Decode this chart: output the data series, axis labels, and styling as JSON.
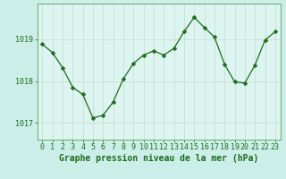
{
  "x": [
    0,
    1,
    2,
    3,
    4,
    5,
    6,
    7,
    8,
    9,
    10,
    11,
    12,
    13,
    14,
    15,
    16,
    17,
    18,
    19,
    20,
    21,
    22,
    23
  ],
  "y": [
    1018.88,
    1018.68,
    1018.32,
    1017.85,
    1017.68,
    1017.12,
    1017.18,
    1017.5,
    1018.05,
    1018.42,
    1018.62,
    1018.72,
    1018.62,
    1018.78,
    1019.18,
    1019.52,
    1019.28,
    1019.05,
    1018.4,
    1017.98,
    1017.95,
    1018.38,
    1018.98,
    1019.18
  ],
  "line_color": "#1e6b1e",
  "marker": "D",
  "marker_size": 2.5,
  "bg_color": "#cceee8",
  "grid_color": "#c8d8d0",
  "plot_bg": "#ddf5f0",
  "xlabel": "Graphe pression niveau de la mer (hPa)",
  "xlabel_color": "#1e6b1e",
  "tick_color": "#1e6b1e",
  "axis_color": "#6aaa6a",
  "ylim": [
    1016.6,
    1019.85
  ],
  "yticks": [
    1017,
    1018,
    1019
  ],
  "xticks": [
    0,
    1,
    2,
    3,
    4,
    5,
    6,
    7,
    8,
    9,
    10,
    11,
    12,
    13,
    14,
    15,
    16,
    17,
    18,
    19,
    20,
    21,
    22,
    23
  ],
  "fontsize_xlabel": 7.0,
  "fontsize_tick": 6.0,
  "linewidth": 0.9,
  "grid_linewidth": 0.5
}
